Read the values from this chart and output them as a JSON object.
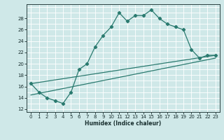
{
  "line1_x": [
    0,
    1,
    2,
    3,
    4,
    5,
    6,
    7,
    8,
    9,
    10,
    11,
    12,
    13,
    14,
    15,
    16,
    17,
    18,
    19,
    20,
    21,
    22,
    23
  ],
  "line1_y": [
    16.5,
    15.0,
    14.0,
    13.5,
    13.0,
    15.0,
    19.0,
    20.0,
    23.0,
    25.0,
    26.5,
    29.0,
    27.5,
    28.5,
    28.5,
    29.5,
    28.0,
    27.0,
    26.5,
    26.0,
    22.5,
    21.0,
    21.5,
    21.5
  ],
  "line2_x": [
    0,
    23
  ],
  "line2_y": [
    16.5,
    21.5
  ],
  "line3_x": [
    0,
    23
  ],
  "line3_y": [
    14.5,
    21.0
  ],
  "line_color": "#2a7a6f",
  "bg_color": "#cfe8e8",
  "grid_color": "#b0d8d8",
  "xlabel": "Humidex (Indice chaleur)",
  "xlim": [
    -0.5,
    23.5
  ],
  "ylim": [
    11.5,
    30.5
  ],
  "yticks": [
    12,
    14,
    16,
    18,
    20,
    22,
    24,
    26,
    28
  ],
  "xticks": [
    0,
    1,
    2,
    3,
    4,
    5,
    6,
    7,
    8,
    9,
    10,
    11,
    12,
    13,
    14,
    15,
    16,
    17,
    18,
    19,
    20,
    21,
    22,
    23
  ]
}
